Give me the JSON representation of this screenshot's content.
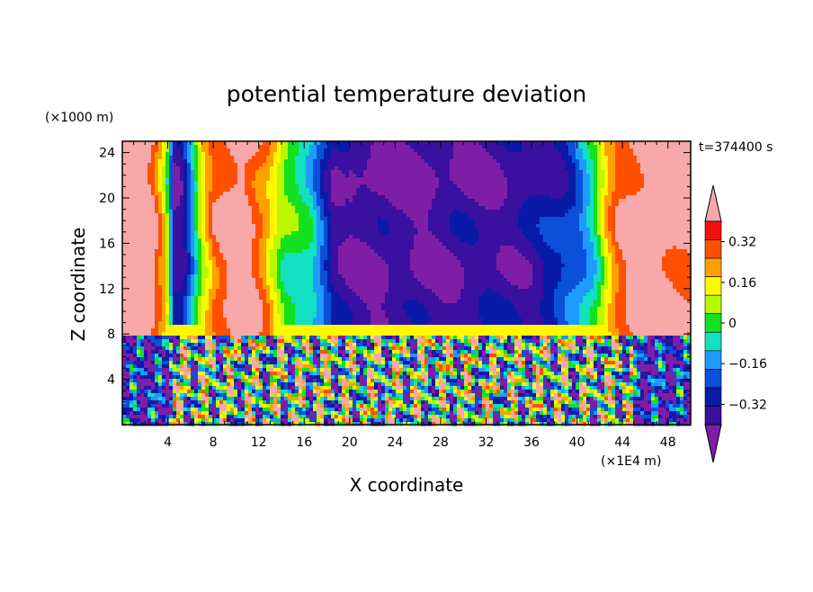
{
  "chart_data": {
    "type": "heatmap",
    "title": "potential temperature deviation",
    "xlabel": "X coordinate",
    "ylabel": "Z coordinate",
    "x_units": "(×1E4 m)",
    "y_units": "(×1000 m)",
    "time_label": "t=374400 s",
    "xlim": [
      0,
      50
    ],
    "ylim": [
      0,
      25
    ],
    "x_ticks": [
      4,
      8,
      12,
      16,
      20,
      24,
      28,
      32,
      36,
      40,
      44,
      48
    ],
    "y_ticks": [
      4,
      8,
      12,
      16,
      20,
      24
    ],
    "x_tick_labels": [
      "4",
      "8",
      "12",
      "16",
      "20",
      "24",
      "28",
      "32",
      "36",
      "40",
      "44",
      "48"
    ],
    "y_tick_labels": [
      "4",
      "8",
      "12",
      "16",
      "20",
      "24"
    ],
    "colorbar": {
      "levels": [
        -0.4,
        -0.32,
        -0.24,
        -0.16,
        -0.08,
        0,
        0.08,
        0.16,
        0.24,
        0.32,
        0.4
      ],
      "labels": [
        "0.32",
        "0.16",
        "0",
        "−0.16",
        "−0.32"
      ],
      "label_values": [
        0.32,
        0.16,
        0,
        -0.16,
        -0.32
      ],
      "colors": [
        "#7e1ea6",
        "#3a10a0",
        "#0a1aa8",
        "#0a50d8",
        "#1e9bff",
        "#12e0c0",
        "#12e020",
        "#b8f800",
        "#fff800",
        "#ffa000",
        "#ff5000",
        "#f01010",
        "#f8a8a8"
      ]
    },
    "fields": {
      "upper_layer_columns": [
        {
          "x": 0.8,
          "value": 0.5
        },
        {
          "x": 2.6,
          "value": 0.44
        },
        {
          "x": 3.8,
          "value": 0.2
        },
        {
          "x": 4.6,
          "value": -0.38
        },
        {
          "x": 5.3,
          "value": -0.34
        },
        {
          "x": 6.2,
          "value": -0.08
        },
        {
          "x": 7.1,
          "value": 0.18
        },
        {
          "x": 8.0,
          "value": 0.34
        },
        {
          "x": 10.5,
          "value": 0.5
        },
        {
          "x": 12.6,
          "value": 0.3
        },
        {
          "x": 14.2,
          "value": 0.06
        },
        {
          "x": 15.4,
          "value": 0.0
        },
        {
          "x": 16.6,
          "value": -0.06
        },
        {
          "x": 17.6,
          "value": -0.2
        },
        {
          "x": 18.6,
          "value": -0.36
        },
        {
          "x": 22.0,
          "value": -0.4
        },
        {
          "x": 30.0,
          "value": -0.38
        },
        {
          "x": 36.0,
          "value": -0.34
        },
        {
          "x": 38.5,
          "value": -0.26
        },
        {
          "x": 40.2,
          "value": -0.16
        },
        {
          "x": 41.5,
          "value": -0.02
        },
        {
          "x": 42.6,
          "value": 0.22
        },
        {
          "x": 43.6,
          "value": 0.36
        },
        {
          "x": 46.0,
          "value": 0.5
        },
        {
          "x": 49.8,
          "value": 0.42
        }
      ],
      "lower_layer_top": 8
    }
  }
}
